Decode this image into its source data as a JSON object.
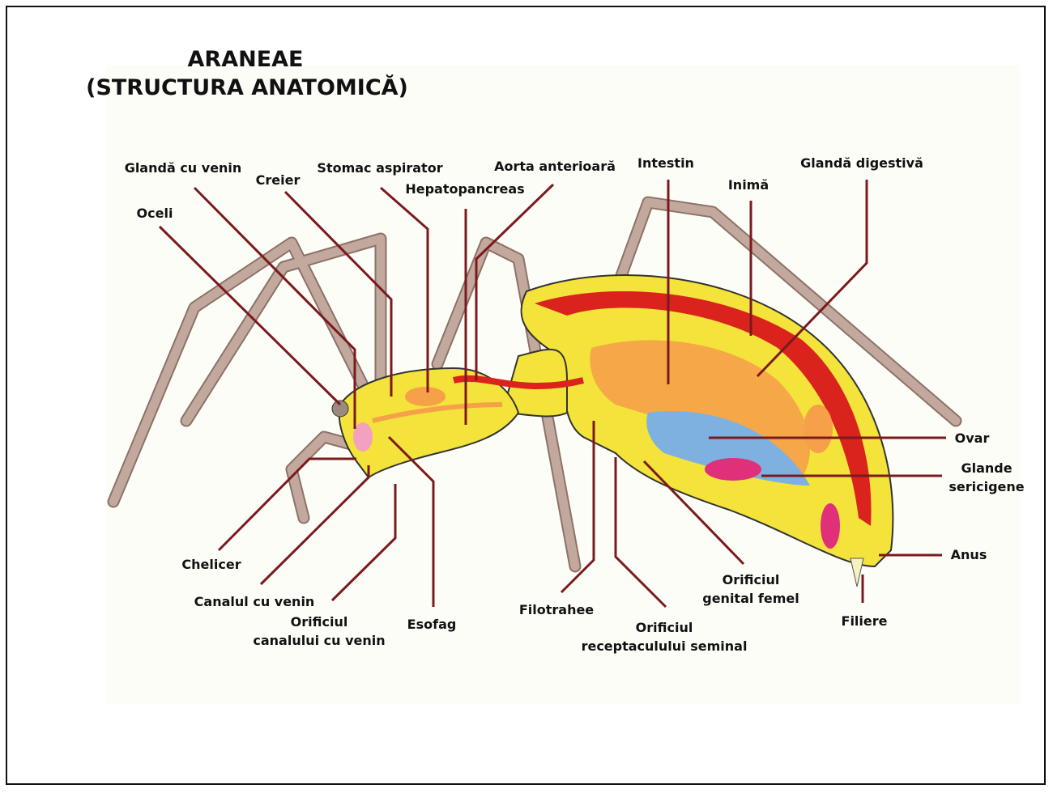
{
  "title": {
    "line1": "ARANEAE",
    "line2": "(STRUCTURA ANATOMICĂ)"
  },
  "colors": {
    "leader_line": "#7a1a1f",
    "body_yellow": "#f3e33a",
    "heart_red": "#d9231c",
    "gut_orange": "#f6a04a",
    "ovary_blue": "#7fb1e0",
    "silk_gland_pink": "#e0307a",
    "leg_brown": "#b89b90"
  },
  "labels": {
    "glanda_venin": "Glandă cu venin",
    "creier": "Creier",
    "stomac": "Stomac aspirator",
    "hepatopancreas": "Hepatopancreas",
    "aorta": "Aorta anterioară",
    "intestin": "Intestin",
    "inima": "Inimă",
    "glanda_digestiva": "Glandă digestivă",
    "oceli": "Oceli",
    "ovar": "Ovar",
    "glande_sericigene": [
      "Glande",
      "sericigene"
    ],
    "anus": "Anus",
    "filiere": "Filiere",
    "orificiul_genital": [
      "Orificiul",
      "genital femel"
    ],
    "orificiul_receptacul": [
      "Orificiul",
      "receptaculului seminal"
    ],
    "filotrahee": "Filotrahee",
    "esofag": "Esofag",
    "orificiul_canal": [
      "Orificiul",
      "canalului cu venin"
    ],
    "canalul_venin": "Canalul cu venin",
    "chelicer": "Chelicer"
  }
}
